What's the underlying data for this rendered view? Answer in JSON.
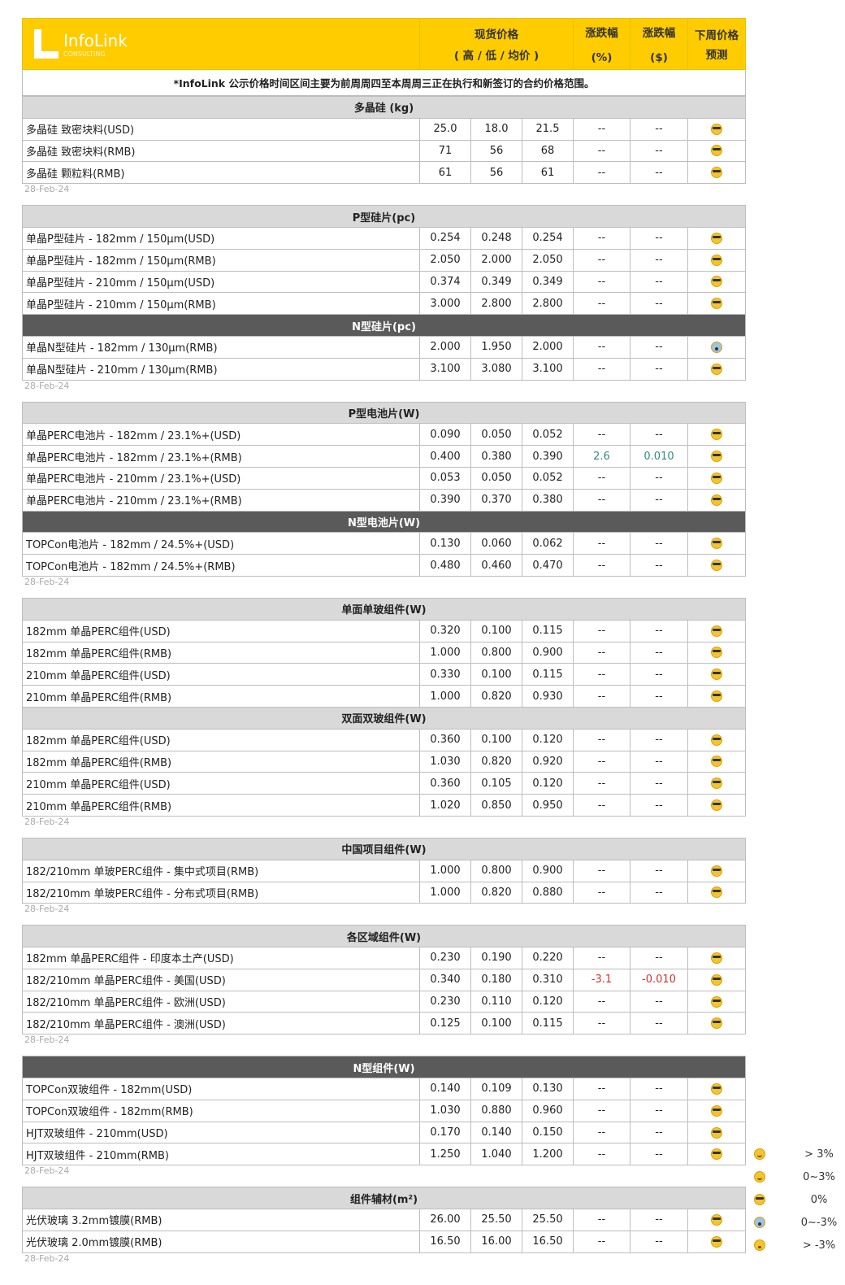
{
  "header": {
    "brand": "InfoLink",
    "brand_sub": "CONSULTING",
    "spot_price": "现货价格",
    "spot_sub": "( 高 / 低 / 均价 )",
    "chg_pct": "涨跌幅",
    "chg_pct_unit": "(%)",
    "chg_usd": "涨跌幅",
    "chg_usd_unit": "($)",
    "forecast": "下周价格",
    "forecast_sub": "预测",
    "accent": "#ffcc00"
  },
  "note": "*InfoLink 公示价格时间区间主要为前周周四至本周周三正在执行和新签订的合约价格范围。",
  "groups": [
    {
      "date": "28-Feb-24",
      "sections": [
        {
          "title": "多晶硅 (kg)",
          "dark": false,
          "rows": [
            [
              "多晶硅 致密块料(USD)",
              "25.0",
              "18.0",
              "21.5",
              "--",
              "--",
              "cool"
            ],
            [
              "多晶硅 致密块料(RMB)",
              "71",
              "56",
              "68",
              "--",
              "--",
              "cool"
            ],
            [
              "多晶硅 颗粒料(RMB)",
              "61",
              "56",
              "61",
              "--",
              "--",
              "cool"
            ]
          ]
        }
      ]
    },
    {
      "date": "28-Feb-24",
      "sections": [
        {
          "title": "P型硅片(pc)",
          "dark": false,
          "rows": [
            [
              "单晶P型硅片 - 182mm / 150μm(USD)",
              "0.254",
              "0.248",
              "0.254",
              "--",
              "--",
              "cool"
            ],
            [
              "单晶P型硅片 - 182mm / 150μm(RMB)",
              "2.050",
              "2.000",
              "2.050",
              "--",
              "--",
              "cool"
            ],
            [
              "单晶P型硅片 - 210mm / 150μm(USD)",
              "0.374",
              "0.349",
              "0.349",
              "--",
              "--",
              "cool"
            ],
            [
              "单晶P型硅片 - 210mm / 150μm(RMB)",
              "3.000",
              "2.800",
              "2.800",
              "--",
              "--",
              "cool"
            ]
          ]
        },
        {
          "title": "N型硅片(pc)",
          "dark": true,
          "rows": [
            [
              "单晶N型硅片 - 182mm / 130μm(RMB)",
              "2.000",
              "1.950",
              "2.000",
              "--",
              "--",
              "scream"
            ],
            [
              "单晶N型硅片 - 210mm / 130μm(RMB)",
              "3.100",
              "3.080",
              "3.100",
              "--",
              "--",
              "cool"
            ]
          ]
        }
      ]
    },
    {
      "date": "28-Feb-24",
      "sections": [
        {
          "title": "P型电池片(W)",
          "dark": false,
          "rows": [
            [
              "单晶PERC电池片 - 182mm / 23.1%+(USD)",
              "0.090",
              "0.050",
              "0.052",
              "--",
              "--",
              "cool"
            ],
            [
              "单晶PERC电池片 - 182mm / 23.1%+(RMB)",
              "0.400",
              "0.380",
              "0.390",
              "2.6",
              "0.010",
              "cool"
            ],
            [
              "单晶PERC电池片 - 210mm / 23.1%+(USD)",
              "0.053",
              "0.050",
              "0.052",
              "--",
              "--",
              "cool"
            ],
            [
              "单晶PERC电池片 - 210mm / 23.1%+(RMB)",
              "0.390",
              "0.370",
              "0.380",
              "--",
              "--",
              "cool"
            ]
          ]
        },
        {
          "title": "N型电池片(W)",
          "dark": true,
          "rows": [
            [
              "TOPCon电池片 - 182mm / 24.5%+(USD)",
              "0.130",
              "0.060",
              "0.062",
              "--",
              "--",
              "cool"
            ],
            [
              "TOPCon电池片 - 182mm / 24.5%+(RMB)",
              "0.480",
              "0.460",
              "0.470",
              "--",
              "--",
              "cool"
            ]
          ]
        }
      ]
    },
    {
      "date": "28-Feb-24",
      "sections": [
        {
          "title": "单面单玻组件(W)",
          "dark": false,
          "rows": [
            [
              "182mm 单晶PERC组件(USD)",
              "0.320",
              "0.100",
              "0.115",
              "--",
              "--",
              "cool"
            ],
            [
              "182mm 单晶PERC组件(RMB)",
              "1.000",
              "0.800",
              "0.900",
              "--",
              "--",
              "cool"
            ],
            [
              "210mm 单晶PERC组件(USD)",
              "0.330",
              "0.100",
              "0.115",
              "--",
              "--",
              "cool"
            ],
            [
              "210mm 单晶PERC组件(RMB)",
              "1.000",
              "0.820",
              "0.930",
              "--",
              "--",
              "cool"
            ]
          ]
        },
        {
          "title": "双面双玻组件(W)",
          "dark": false,
          "rows": [
            [
              "182mm 单晶PERC组件(USD)",
              "0.360",
              "0.100",
              "0.120",
              "--",
              "--",
              "cool"
            ],
            [
              "182mm 单晶PERC组件(RMB)",
              "1.030",
              "0.820",
              "0.920",
              "--",
              "--",
              "cool"
            ],
            [
              "210mm 单晶PERC组件(USD)",
              "0.360",
              "0.105",
              "0.120",
              "--",
              "--",
              "cool"
            ],
            [
              "210mm 单晶PERC组件(RMB)",
              "1.020",
              "0.850",
              "0.950",
              "--",
              "--",
              "cool"
            ]
          ]
        }
      ]
    },
    {
      "date": "28-Feb-24",
      "sections": [
        {
          "title": "中国项目组件(W)",
          "dark": false,
          "rows": [
            [
              "182/210mm 单玻PERC组件 - 集中式项目(RMB)",
              "1.000",
              "0.800",
              "0.900",
              "--",
              "--",
              "cool"
            ],
            [
              "182/210mm 单玻PERC组件 - 分布式项目(RMB)",
              "1.000",
              "0.820",
              "0.880",
              "--",
              "--",
              "cool"
            ]
          ]
        }
      ]
    },
    {
      "date": "28-Feb-24",
      "sections": [
        {
          "title": "各区域组件(W)",
          "dark": false,
          "rows": [
            [
              "182mm 单晶PERC组件 - 印度本土产(USD)",
              "0.230",
              "0.190",
              "0.220",
              "--",
              "--",
              "cool"
            ],
            [
              "182/210mm 单晶PERC组件 - 美国(USD)",
              "0.340",
              "0.180",
              "0.310",
              "-3.1",
              "-0.010",
              "cool"
            ],
            [
              "182/210mm 单晶PERC组件 - 欧洲(USD)",
              "0.230",
              "0.110",
              "0.120",
              "--",
              "--",
              "cool"
            ],
            [
              "182/210mm 单晶PERC组件 - 澳洲(USD)",
              "0.125",
              "0.100",
              "0.115",
              "--",
              "--",
              "cool"
            ]
          ]
        }
      ]
    },
    {
      "date": "28-Feb-24",
      "sections": [
        {
          "title": "N型组件(W)",
          "dark": true,
          "rows": [
            [
              "TOPCon双玻组件 - 182mm(USD)",
              "0.140",
              "0.109",
              "0.130",
              "--",
              "--",
              "cool"
            ],
            [
              "TOPCon双玻组件 - 182mm(RMB)",
              "1.030",
              "0.880",
              "0.960",
              "--",
              "--",
              "cool"
            ],
            [
              "HJT双玻组件 - 210mm(USD)",
              "0.170",
              "0.140",
              "0.150",
              "--",
              "--",
              "cool"
            ],
            [
              "HJT双玻组件 - 210mm(RMB)",
              "1.250",
              "1.040",
              "1.200",
              "--",
              "--",
              "cool"
            ]
          ]
        }
      ]
    },
    {
      "date": "28-Feb-24",
      "sections": [
        {
          "title": "组件辅材(m²)",
          "dark": false,
          "rows": [
            [
              "光伏玻璃 3.2mm镀膜(RMB)",
              "26.00",
              "25.50",
              "25.50",
              "--",
              "--",
              "cool"
            ],
            [
              "光伏玻璃 2.0mm镀膜(RMB)",
              "16.50",
              "16.00",
              "16.50",
              "--",
              "--",
              "cool"
            ]
          ]
        }
      ]
    }
  ],
  "legend": [
    {
      "icon": "grin",
      "label": "> 3%"
    },
    {
      "icon": "smile",
      "label": "0~3%"
    },
    {
      "icon": "cool",
      "label": "0%"
    },
    {
      "icon": "scream",
      "label": "0~-3%"
    },
    {
      "icon": "dizzy",
      "label": "> -3%"
    }
  ],
  "colors": {
    "up": "#2f8a84",
    "down": "#d0342c",
    "section": "#d9d9d9",
    "section_dark": "#5a5a5a"
  }
}
